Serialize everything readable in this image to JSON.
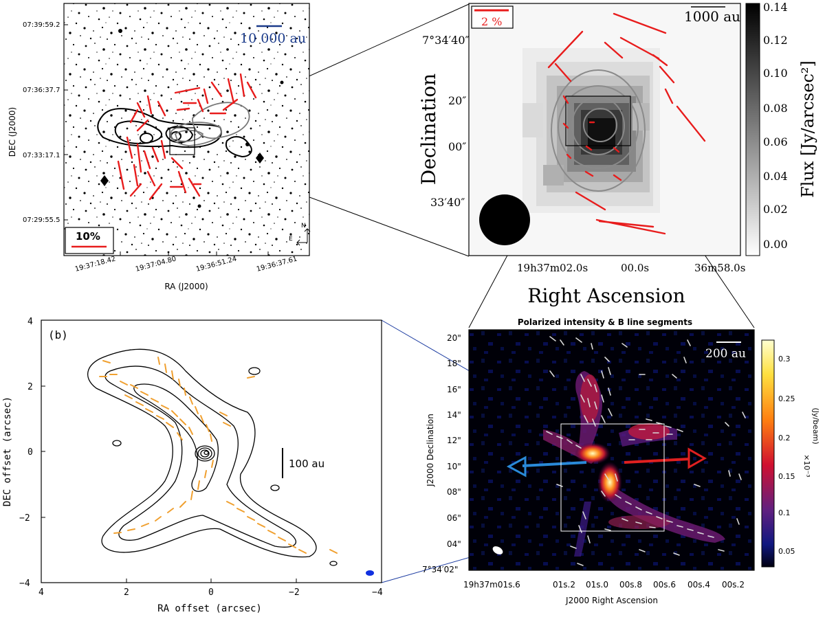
{
  "panel_a": {
    "scale_bar": "10 000 au",
    "pol_scale": "10%",
    "ylabel": "DEC (J2000)",
    "xlabel": "RA (J2000)",
    "yticks": [
      "07:39:59.2",
      "07:36:37.7",
      "07:33:17.1",
      "07:29:55.5"
    ],
    "xticks": [
      "19:37:18.42",
      "19:37:04.80",
      "19:36:51.24",
      "19:36:37.61"
    ],
    "compass_n": "N",
    "compass_e": "E"
  },
  "panel_b_top": {
    "pol_scale": "2 %",
    "scale_bar": "1000 au",
    "ylabel": "Declination",
    "xlabel": "Right Ascension",
    "yticks": [
      "7°34′40″",
      "20″",
      "00″",
      "33′40″"
    ],
    "xticks": [
      "19h37m02.0s",
      "00.0s",
      "36m58.0s"
    ],
    "cbar_label": "Flux [Jy/arcsec²]",
    "cbar_ticks": [
      "0.14",
      "0.12",
      "0.10",
      "0.08",
      "0.06",
      "0.04",
      "0.02",
      "0.00"
    ]
  },
  "panel_c": {
    "label": "(b)",
    "scale_bar": "100 au",
    "ylabel": "DEC offset (arcsec)",
    "xlabel": "RA offset (arcsec)",
    "yticks": [
      "4",
      "2",
      "0",
      "−2",
      "−4"
    ],
    "xticks": [
      "4",
      "2",
      "0",
      "−2",
      "−4"
    ]
  },
  "panel_d": {
    "title": "Polarized intensity & B line segments",
    "scale_bar": "200 au",
    "ylabel": "J2000 Declination",
    "xlabel": "J2000 Right Ascension",
    "yticks": [
      "20\"",
      "18\"",
      "16\"",
      "14\"",
      "12\"",
      "10\"",
      "08\"",
      "06\"",
      "04\"",
      "7°34′02\""
    ],
    "xticks": [
      "19h37m01s.6",
      "01s.2",
      "01s.0",
      "00s.8",
      "00s.6",
      "00s.4",
      "00s.2"
    ],
    "cbar_label": "(Jy/beam)",
    "cbar_unit": "×10⁻³",
    "cbar_ticks": [
      "0.3",
      "0.25",
      "0.2",
      "0.15",
      "0.1",
      "0.05"
    ]
  },
  "colors": {
    "red_vectors": "#e81c1c",
    "orange_vectors": "#f0a030",
    "blue_scale": "#1a3a8a",
    "outflow_blue": "#2a8ad8",
    "outflow_red": "#e02020"
  }
}
